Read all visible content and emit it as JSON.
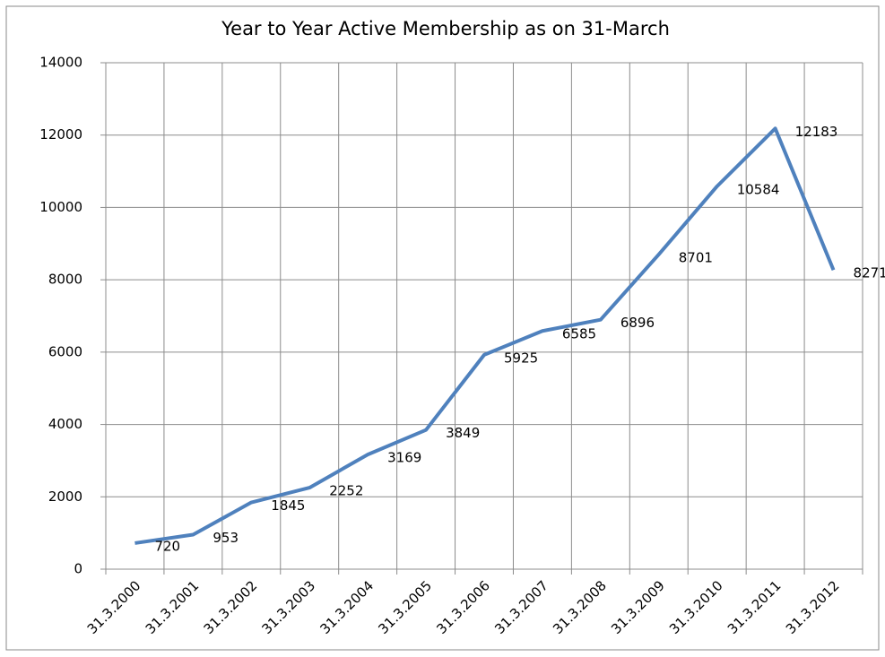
{
  "chart_data": {
    "type": "line",
    "title": "Year to Year Active Membership as on 31-March",
    "categories": [
      "31.3.2000",
      "31.3.2001",
      "31.3.2002",
      "31.3.2003",
      "31.3.2004",
      "31.3.2005",
      "31.3.2006",
      "31.3.2007",
      "31.3.2008",
      "31.3.2009",
      "31.3.2010",
      "31.3.2011",
      "31.3.2012"
    ],
    "values": [
      720,
      953,
      1845,
      2252,
      3169,
      3849,
      5925,
      6585,
      6896,
      8701,
      10584,
      12183,
      8271
    ],
    "color": "#4f81bd",
    "ylim": [
      0,
      14000
    ],
    "yticks": [
      0,
      2000,
      4000,
      6000,
      8000,
      10000,
      12000,
      14000
    ],
    "grid": true
  }
}
